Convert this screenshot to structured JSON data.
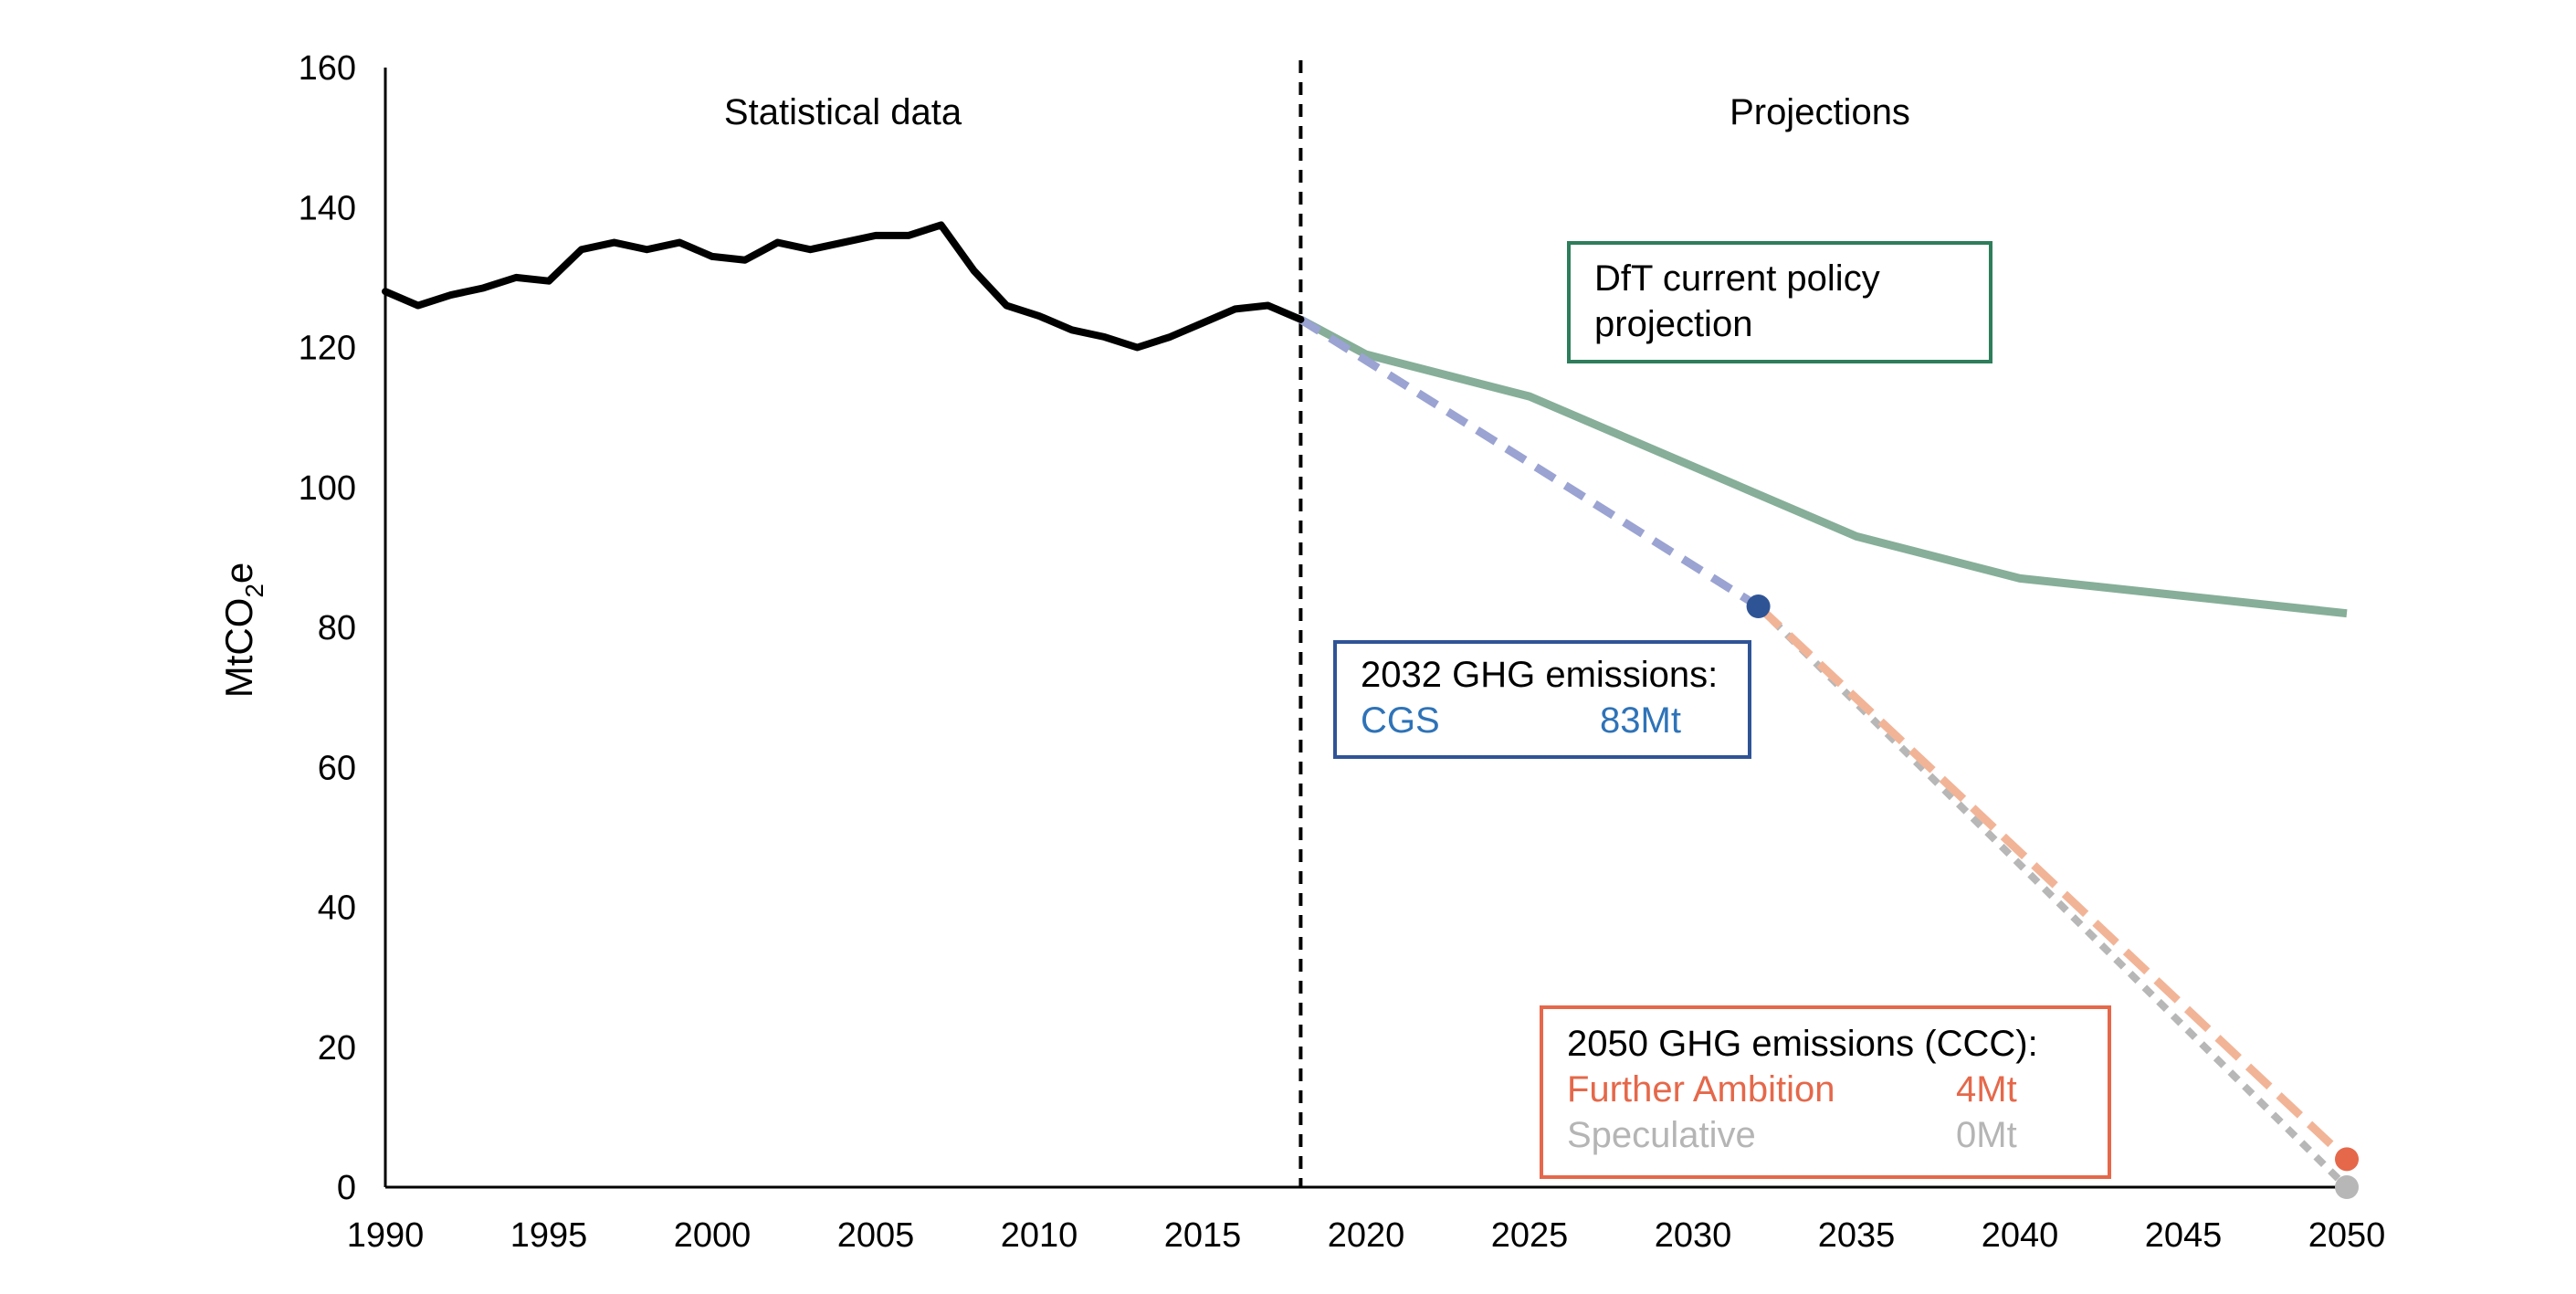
{
  "chart_data": {
    "type": "line",
    "ylabel": {
      "main": "MtCO",
      "sub": "2",
      "suffix": "e"
    },
    "xlim": [
      1990,
      2050
    ],
    "ylim": [
      0,
      160
    ],
    "xticks": [
      "1990",
      "1995",
      "2000",
      "2005",
      "2010",
      "2015",
      "2020",
      "2025",
      "2030",
      "2035",
      "2040",
      "2045",
      "2050"
    ],
    "yticks": [
      "0",
      "20",
      "40",
      "60",
      "80",
      "100",
      "120",
      "140",
      "160"
    ],
    "divider_x": 2018,
    "regions": {
      "left": "Statistical data",
      "right": "Projections"
    },
    "colors": {
      "historical": "#000000",
      "dft": "#86ae98",
      "cgs": "#9aa3d1",
      "further": "#f2b497",
      "speculative": "#b7b7b7",
      "cgs_point": "#2f5496",
      "further_point": "#e5684a",
      "speculative_point": "#b7b7b7",
      "dft_box": "#2e7d5b",
      "cgs_box": "#2f5496",
      "ccc_box": "#e5684a",
      "cgs_text": "#2e73b8",
      "further_text": "#e5684a",
      "speculative_text": "#b5b5b5"
    },
    "series": [
      {
        "key": "historical",
        "x": [
          1990,
          1991,
          1992,
          1993,
          1994,
          1995,
          1996,
          1997,
          1998,
          1999,
          2000,
          2001,
          2002,
          2003,
          2004,
          2005,
          2006,
          2007,
          2008,
          2009,
          2010,
          2011,
          2012,
          2013,
          2014,
          2015,
          2016,
          2017,
          2018
        ],
        "y": [
          128,
          126,
          127.5,
          128.5,
          130,
          129.5,
          134,
          135,
          134,
          135,
          133,
          132.5,
          135,
          134,
          135,
          136,
          136,
          137.5,
          131,
          126,
          124.5,
          122.5,
          121.5,
          120,
          121.5,
          123.5,
          125.5,
          126,
          124
        ]
      },
      {
        "key": "dft",
        "x": [
          2018,
          2020,
          2025,
          2030,
          2035,
          2040,
          2045,
          2050
        ],
        "y": [
          124,
          119,
          113,
          103,
          93,
          87,
          84.5,
          82
        ]
      },
      {
        "key": "cgs",
        "x": [
          2018,
          2032
        ],
        "y": [
          124,
          83
        ]
      },
      {
        "key": "further",
        "x": [
          2032,
          2050
        ],
        "y": [
          83,
          4
        ]
      },
      {
        "key": "speculative",
        "x": [
          2032,
          2050
        ],
        "y": [
          83,
          0
        ]
      }
    ],
    "points": [
      {
        "key": "cgs_point",
        "x": 2032,
        "y": 83
      },
      {
        "key": "further_point",
        "x": 2050,
        "y": 4
      },
      {
        "key": "speculative_point",
        "x": 2050,
        "y": 0
      }
    ],
    "annotations": {
      "dft": {
        "line1": "DfT current policy",
        "line2": "projection"
      },
      "cgs": {
        "title": "2032 GHG emissions:",
        "label": "CGS",
        "value": "83Mt"
      },
      "ccc": {
        "title": "2050 GHG emissions (CCC):",
        "further_label": "Further Ambition",
        "further_value": "4Mt",
        "speculative_label": "Speculative",
        "speculative_value": "0Mt"
      }
    }
  }
}
